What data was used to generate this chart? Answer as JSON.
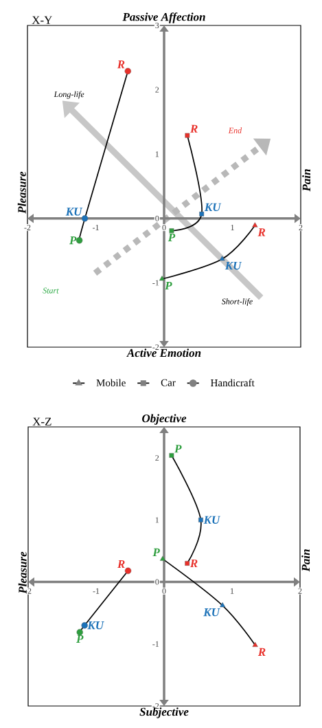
{
  "chart_data": [
    {
      "type": "line",
      "title": "X-Y",
      "annotations": [
        "Passive Affection",
        "Active Emotion",
        "Pleasure",
        "Pain",
        "Long-life",
        "Short-life",
        "Start",
        "End"
      ],
      "xlim": [
        -2,
        2
      ],
      "ylim": [
        -2,
        3
      ],
      "xticks": [
        -2,
        -1,
        0,
        1,
        2
      ],
      "yticks": [
        -2,
        -1,
        0,
        1,
        2,
        3
      ],
      "legend": "bottom",
      "series": [
        {
          "name": "Mobile",
          "color": "#000000",
          "marker": "triangle",
          "x": [
            -0.03,
            0.85,
            1.33
          ],
          "values": [
            -0.94,
            -0.63,
            -0.11
          ],
          "colors": [
            "#2e9e3e",
            "#1c72b8",
            "#e8302a"
          ],
          "value_labels": [
            "P",
            "KU",
            "R"
          ]
        },
        {
          "name": "Car",
          "color": "#000000",
          "marker": "square",
          "x": [
            0.11,
            0.55,
            0.34
          ],
          "values": [
            -0.19,
            0.07,
            1.29
          ],
          "colors": [
            "#2e9e3e",
            "#1c72b8",
            "#e8302a"
          ],
          "value_labels": [
            "P",
            "KU",
            "R"
          ]
        },
        {
          "name": "Handicraft",
          "color": "#000000",
          "marker": "circle",
          "x": [
            -1.24,
            -1.16,
            -0.53
          ],
          "values": [
            -0.34,
            0.0,
            2.29
          ],
          "colors": [
            "#2e9e3e",
            "#1c72b8",
            "#e8302a"
          ],
          "value_labels": [
            "P",
            "KU",
            "R"
          ]
        }
      ]
    },
    {
      "type": "line",
      "title": "X-Z",
      "annotations": [
        "Objective",
        "Subjective",
        "Pleasure",
        "Pain"
      ],
      "xlim": [
        -2,
        2
      ],
      "ylim": [
        -2,
        2.5
      ],
      "xticks": [
        -2,
        -1,
        0,
        1,
        2
      ],
      "yticks": [
        -2,
        -1,
        0,
        1,
        2
      ],
      "series": [
        {
          "color": "#000000",
          "marker": "triangle",
          "x": [
            -0.02,
            0.86,
            1.34
          ],
          "values": [
            0.37,
            -0.38,
            -1.02
          ],
          "colors": [
            "#2e9e3e",
            "#1c72b8",
            "#e8302a"
          ],
          "value_labels": [
            "P",
            "KU",
            "R"
          ]
        },
        {
          "color": "#000000",
          "marker": "square",
          "x": [
            0.11,
            0.54,
            0.34
          ],
          "values": [
            2.04,
            1.0,
            0.3
          ],
          "colors": [
            "#2e9e3e",
            "#1c72b8",
            "#e8302a"
          ],
          "value_labels": [
            "P",
            "KU",
            "R"
          ]
        },
        {
          "color": "#000000",
          "marker": "circle",
          "x": [
            -1.24,
            -1.17,
            -0.53
          ],
          "values": [
            -0.81,
            -0.7,
            0.18
          ],
          "colors": [
            "#2e9e3e",
            "#1c72b8",
            "#e8302a"
          ],
          "value_labels": [
            "P",
            "KU",
            "R"
          ]
        }
      ]
    }
  ]
}
